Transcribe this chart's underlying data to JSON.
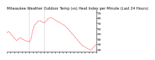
{
  "title": "Milwaukee Weather Outdoor Temp (vs) Heat Index per Minute (Last 24 Hours)",
  "bg_color": "#ffffff",
  "line_color": "#ff0000",
  "vline_color": "#999999",
  "vline_x": [
    0.25,
    0.42
  ],
  "y_ticks": [
    20,
    30,
    40,
    50,
    60,
    70,
    80,
    90
  ],
  "ylim": [
    15,
    95
  ],
  "xlim": [
    0,
    1
  ],
  "x_values": [
    0.0,
    0.01,
    0.02,
    0.03,
    0.04,
    0.05,
    0.06,
    0.07,
    0.08,
    0.09,
    0.1,
    0.11,
    0.12,
    0.13,
    0.14,
    0.15,
    0.16,
    0.17,
    0.18,
    0.19,
    0.2,
    0.21,
    0.22,
    0.23,
    0.24,
    0.25,
    0.26,
    0.27,
    0.28,
    0.29,
    0.3,
    0.31,
    0.32,
    0.33,
    0.34,
    0.35,
    0.36,
    0.37,
    0.38,
    0.39,
    0.4,
    0.41,
    0.42,
    0.43,
    0.44,
    0.45,
    0.46,
    0.47,
    0.48,
    0.49,
    0.5,
    0.51,
    0.52,
    0.53,
    0.54,
    0.55,
    0.56,
    0.57,
    0.58,
    0.59,
    0.6,
    0.61,
    0.62,
    0.63,
    0.64,
    0.65,
    0.66,
    0.67,
    0.68,
    0.69,
    0.7,
    0.71,
    0.72,
    0.73,
    0.74,
    0.75,
    0.76,
    0.77,
    0.78,
    0.79,
    0.8,
    0.81,
    0.82,
    0.83,
    0.84,
    0.85,
    0.86,
    0.87,
    0.88,
    0.89,
    0.9,
    0.91,
    0.92,
    0.93,
    0.94,
    0.95,
    0.96,
    0.97,
    0.98,
    0.99,
    1.0
  ],
  "y_values": [
    52,
    53,
    54,
    52,
    50,
    48,
    46,
    44,
    42,
    40,
    38,
    37,
    38,
    40,
    41,
    42,
    41,
    40,
    39,
    38,
    37,
    36,
    36,
    36,
    35,
    34,
    36,
    40,
    48,
    56,
    62,
    66,
    68,
    70,
    72,
    73,
    74,
    74,
    74,
    73,
    72,
    71,
    70,
    72,
    74,
    76,
    78,
    79,
    80,
    80,
    80,
    79,
    78,
    77,
    76,
    75,
    74,
    73,
    72,
    71,
    70,
    69,
    68,
    67,
    66,
    65,
    63,
    61,
    60,
    58,
    56,
    54,
    52,
    50,
    48,
    46,
    44,
    42,
    40,
    38,
    36,
    34,
    32,
    30,
    28,
    27,
    26,
    25,
    24,
    23,
    22,
    21,
    20,
    19,
    19,
    20,
    22,
    24,
    26,
    28,
    30
  ],
  "title_fontsize": 3.8,
  "tick_fontsize": 3.2,
  "num_xticks": 25
}
